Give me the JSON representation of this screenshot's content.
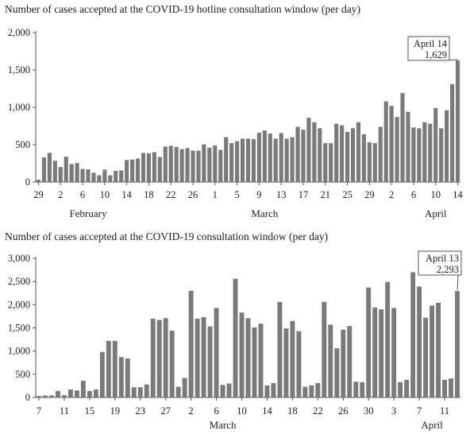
{
  "chart_data": [
    {
      "type": "bar",
      "title": "Number of cases accepted at the COVID-19 hotline consultation window (per day)",
      "ylim": [
        0,
        2000
      ],
      "yticks": [
        0,
        500,
        1000,
        1500,
        2000
      ],
      "ytick_labels": [
        "0",
        "500",
        "1,000",
        "1,500",
        "2,000"
      ],
      "xtick_labels": [
        "29",
        "2",
        "6",
        "10",
        "14",
        "18",
        "22",
        "26",
        "1",
        "5",
        "9",
        "13",
        "17",
        "21",
        "25",
        "29",
        "2",
        "6",
        "10",
        "14"
      ],
      "month_labels": [
        "February",
        "March",
        "April"
      ],
      "callout": {
        "date": "April 14",
        "value": "1,629"
      },
      "values": [
        30,
        330,
        390,
        285,
        200,
        340,
        240,
        255,
        175,
        170,
        125,
        90,
        165,
        90,
        150,
        155,
        295,
        300,
        315,
        390,
        385,
        400,
        335,
        475,
        485,
        470,
        440,
        455,
        420,
        420,
        505,
        460,
        490,
        430,
        600,
        520,
        545,
        580,
        580,
        575,
        660,
        690,
        650,
        580,
        655,
        580,
        600,
        740,
        700,
        860,
        800,
        720,
        520,
        520,
        780,
        760,
        670,
        720,
        800,
        640,
        530,
        520,
        740,
        1080,
        1020,
        870,
        1190,
        940,
        730,
        720,
        800,
        780,
        990,
        720,
        960,
        1310,
        1629
      ]
    },
    {
      "type": "bar",
      "title": "Number of cases accepted at the COVID-19 consultation window (per day)",
      "ylim": [
        0,
        3000
      ],
      "yticks": [
        0,
        500,
        1000,
        1500,
        2000,
        2500,
        3000
      ],
      "ytick_labels": [
        "0",
        "500",
        "1,000",
        "1,500",
        "2,000",
        "2,500",
        "3,000"
      ],
      "xtick_labels": [
        "7",
        "11",
        "15",
        "19",
        "23",
        "27",
        "2",
        "6",
        "10",
        "14",
        "18",
        "22",
        "26",
        "30",
        "3",
        "7",
        "11"
      ],
      "month_labels": [
        "March",
        "April"
      ],
      "callout": {
        "date": "April 13",
        "value": "2,293"
      },
      "values": [
        30,
        40,
        45,
        140,
        50,
        170,
        150,
        360,
        140,
        170,
        980,
        1220,
        1220,
        870,
        840,
        220,
        220,
        280,
        1700,
        1670,
        1710,
        1440,
        230,
        420,
        2300,
        1700,
        1730,
        1530,
        1930,
        270,
        300,
        2560,
        1830,
        1710,
        1510,
        1590,
        260,
        310,
        2060,
        1490,
        1650,
        1430,
        230,
        260,
        310,
        2060,
        1570,
        1060,
        1460,
        1540,
        340,
        330,
        2370,
        1940,
        1900,
        2490,
        1930,
        330,
        380,
        2700,
        2390,
        1720,
        1980,
        2040,
        380,
        410,
        2293
      ]
    }
  ]
}
